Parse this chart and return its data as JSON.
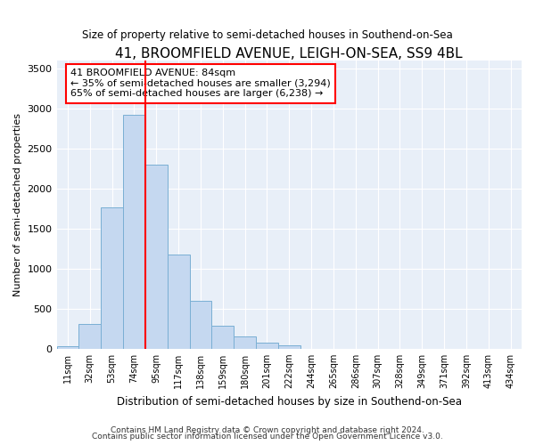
{
  "title": "41, BROOMFIELD AVENUE, LEIGH-ON-SEA, SS9 4BL",
  "subtitle": "Size of property relative to semi-detached houses in Southend-on-Sea",
  "xlabel": "Distribution of semi-detached houses by size in Southend-on-Sea",
  "ylabel": "Number of semi-detached properties",
  "bin_labels": [
    "11sqm",
    "32sqm",
    "53sqm",
    "74sqm",
    "95sqm",
    "117sqm",
    "138sqm",
    "159sqm",
    "180sqm",
    "201sqm",
    "222sqm",
    "244sqm",
    "265sqm",
    "286sqm",
    "307sqm",
    "328sqm",
    "349sqm",
    "371sqm",
    "392sqm",
    "413sqm",
    "434sqm"
  ],
  "bar_heights": [
    30,
    310,
    1760,
    2920,
    2300,
    1180,
    600,
    290,
    150,
    75,
    40,
    0,
    0,
    0,
    0,
    0,
    0,
    0,
    0,
    0,
    0
  ],
  "bar_color": "#c5d8f0",
  "bar_edge_color": "#7aafd4",
  "vline_color": "red",
  "annotation_text": "41 BROOMFIELD AVENUE: 84sqm\n← 35% of semi-detached houses are smaller (3,294)\n65% of semi-detached houses are larger (6,238) →",
  "annotation_box_color": "white",
  "annotation_box_edge": "red",
  "ylim": [
    0,
    3600
  ],
  "yticks": [
    0,
    500,
    1000,
    1500,
    2000,
    2500,
    3000,
    3500
  ],
  "background_color": "#e8eff8",
  "footer1": "Contains HM Land Registry data © Crown copyright and database right 2024.",
  "footer2": "Contains public sector information licensed under the Open Government Licence v3.0."
}
